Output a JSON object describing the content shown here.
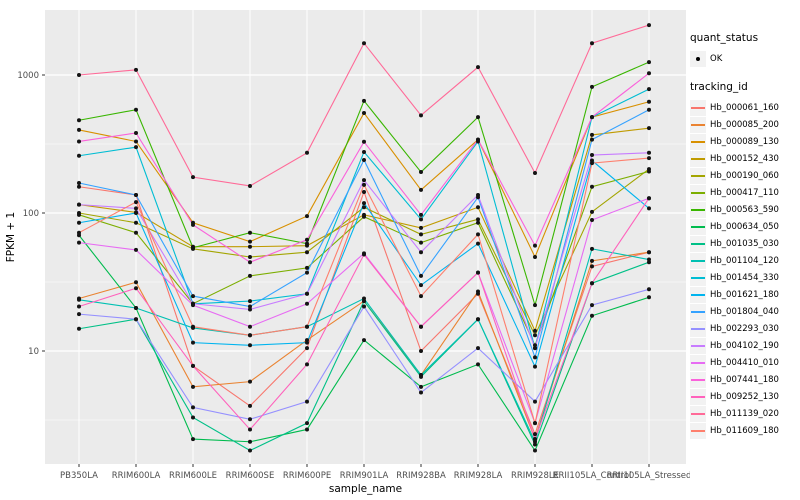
{
  "figure": {
    "background": "#FFFFFF",
    "panel_background": "#EBEBEB",
    "grid_color": "#FFFFFF",
    "axis_text_color": "#4D4D4D",
    "axis_title_color": "#000000",
    "point_color": "#141414",
    "legend_key_background": "#F2F2F2"
  },
  "axes": {
    "x_title": "sample_name",
    "y_title": "FPKM + 1",
    "y_tick_labels": [
      "10",
      "100",
      "1000"
    ]
  },
  "legend": {
    "quant_status": {
      "title": "quant_status",
      "items": [
        {
          "label": "OK",
          "key": "point"
        }
      ]
    },
    "tracking_id": {
      "title": "tracking_id"
    }
  },
  "chart_data": {
    "type": "line",
    "title": "",
    "xlabel": "sample_name",
    "ylabel": "FPKM + 1",
    "y_scale": "log10",
    "ylim": [
      1.5,
      2950
    ],
    "y_major_breaks": [
      10,
      100,
      1000
    ],
    "y_minor_breaks": [
      3.162,
      31.62,
      316.2
    ],
    "grid": true,
    "legend_position": "right",
    "point_shape": "circle",
    "x_categories": [
      "PB350LA",
      "RRIM600LA",
      "RRIM600LE",
      "RRIM600SE",
      "RRIM600PE",
      "RRIM901LA",
      "RRIM928BA",
      "RRIM928LA",
      "RRIM928LE",
      "RRII105LA_Control",
      "RRII105LA_Stressed"
    ],
    "series": [
      {
        "name": "Hb_000061_160",
        "color": "#F8766D",
        "values": [
          155,
          135,
          7.8,
          4.0,
          10.5,
          142,
          10,
          26,
          2.5,
          41,
          52
        ]
      },
      {
        "name": "Hb_000085_200",
        "color": "#EA8331",
        "values": [
          24,
          31.5,
          5.5,
          6.0,
          12,
          23,
          6.7,
          27,
          2.3,
          45,
          52
        ]
      },
      {
        "name": "Hb_000089_130",
        "color": "#D89000",
        "values": [
          400,
          330,
          85,
          62,
          95,
          530,
          147,
          340,
          48,
          495,
          640
        ]
      },
      {
        "name": "Hb_000152_430",
        "color": "#C09B00",
        "values": [
          115,
          101,
          57,
          57,
          58,
          97,
          78,
          110,
          14,
          368,
          412
        ]
      },
      {
        "name": "Hb_000190_060",
        "color": "#A3A500",
        "values": [
          100,
          85,
          55,
          48,
          52,
          110,
          70,
          90,
          13,
          102,
          208
        ]
      },
      {
        "name": "Hb_000417_110",
        "color": "#7CAE00",
        "values": [
          97,
          72,
          22,
          35,
          40,
          94,
          61,
          85,
          11,
          155,
          200
        ]
      },
      {
        "name": "Hb_000563_590",
        "color": "#39B600",
        "values": [
          470,
          560,
          56,
          72,
          60,
          650,
          198,
          495,
          21.5,
          820,
          1240
        ]
      },
      {
        "name": "Hb_000634_050",
        "color": "#00BB4E",
        "values": [
          69,
          20.5,
          2.3,
          2.2,
          2.7,
          12,
          5.5,
          8,
          1.9,
          18,
          24.5
        ]
      },
      {
        "name": "Hb_001035_030",
        "color": "#00C087",
        "values": [
          14.5,
          17,
          3.3,
          1.9,
          3.0,
          23,
          6.5,
          17,
          2.1,
          31,
          44
        ]
      },
      {
        "name": "Hb_001104_120",
        "color": "#00C0B2",
        "values": [
          23.5,
          20.5,
          14.7,
          13,
          15,
          24,
          6.7,
          17,
          2.2,
          55,
          46
        ]
      },
      {
        "name": "Hb_001454_330",
        "color": "#00BDD3",
        "values": [
          260,
          300,
          22,
          23,
          26,
          277,
          90,
          330,
          10.5,
          495,
          790
        ]
      },
      {
        "name": "Hb_001621_180",
        "color": "#00B4EF",
        "values": [
          85,
          100,
          11.5,
          11,
          11.5,
          118,
          30,
          60,
          7.7,
          240,
          108
        ]
      },
      {
        "name": "Hb_001804_040",
        "color": "#35A2FF",
        "values": [
          165,
          135,
          25,
          21,
          37,
          242,
          35,
          130,
          9.0,
          340,
          560
        ]
      },
      {
        "name": "Hb_002293_030",
        "color": "#9590FF",
        "values": [
          18.5,
          17,
          3.9,
          3.2,
          4.3,
          21,
          5.0,
          10.5,
          4.3,
          21.5,
          28
        ]
      },
      {
        "name": "Hb_004102_190",
        "color": "#C77CFF",
        "values": [
          115,
          108,
          22,
          20,
          26,
          173,
          52,
          135,
          10.5,
          263,
          273
        ]
      },
      {
        "name": "Hb_004410_010",
        "color": "#E76BF3",
        "values": [
          61,
          54,
          21.5,
          15,
          22,
          51,
          15,
          37,
          3.0,
          89,
          128
        ]
      },
      {
        "name": "Hb_007441_180",
        "color": "#FA62DB",
        "values": [
          330,
          380,
          82,
          44,
          64,
          328,
          97,
          340,
          58,
          495,
          1030
        ]
      },
      {
        "name": "Hb_009252_130",
        "color": "#FF62BC",
        "values": [
          21,
          28.5,
          7.8,
          2.7,
          8.0,
          50,
          15,
          37,
          2.3,
          31,
          128
        ]
      },
      {
        "name": "Hb_011139_020",
        "color": "#FF6A98",
        "values": [
          1000,
          1090,
          182,
          157,
          273,
          1700,
          510,
          1140,
          195,
          1700,
          2300
        ]
      },
      {
        "name": "Hb_011609_180",
        "color": "#FE7F6D",
        "values": [
          72,
          120,
          15,
          13,
          15,
          160,
          25,
          70,
          3.0,
          230,
          250
        ]
      }
    ]
  }
}
